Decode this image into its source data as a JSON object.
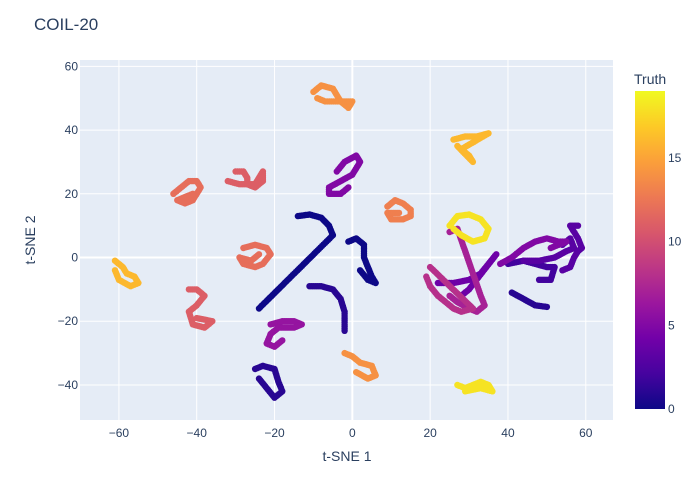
{
  "chart_data": {
    "type": "scatter",
    "title": "COIL-20",
    "xlabel": "t-SNE 1",
    "ylabel": "t-SNE 2",
    "xlim": [
      -70,
      67
    ],
    "ylim": [
      -51,
      62
    ],
    "xticks": [
      -60,
      -40,
      -20,
      0,
      20,
      40,
      60
    ],
    "yticks": [
      -40,
      -20,
      0,
      20,
      40,
      60
    ],
    "colorbar": {
      "title": "Truth",
      "range": [
        0,
        19
      ],
      "ticks": [
        0,
        5,
        10,
        15
      ],
      "colorscale": [
        "#0d0887",
        "#46039f",
        "#7201a8",
        "#9c179e",
        "#bd3786",
        "#d8576b",
        "#ed7953",
        "#fb9f3a",
        "#fdca26",
        "#f0f921"
      ]
    },
    "grid": true,
    "clusters": [
      {
        "truth": 0,
        "points": [
          [
            -14,
            13
          ],
          [
            -11,
            13.5
          ],
          [
            -8,
            12.5
          ],
          [
            -6,
            10
          ],
          [
            -5,
            7
          ],
          [
            -24,
            -16
          ]
        ]
      },
      {
        "truth": 0,
        "points": [
          [
            -1,
            5
          ],
          [
            1,
            6
          ],
          [
            3,
            4
          ],
          [
            3,
            0
          ],
          [
            4,
            -3
          ],
          [
            5,
            -6
          ],
          [
            6,
            -8
          ],
          [
            4,
            -7
          ],
          [
            2,
            -4
          ]
        ]
      },
      {
        "truth": 1,
        "points": [
          [
            -11,
            -9
          ],
          [
            -8,
            -9
          ],
          [
            -5,
            -10
          ],
          [
            -3,
            -13
          ],
          [
            -2,
            -17
          ],
          [
            -2,
            -21
          ],
          [
            -2,
            -23
          ]
        ]
      },
      {
        "truth": 1,
        "points": [
          [
            -25,
            -35
          ],
          [
            -23,
            -34
          ],
          [
            -20,
            -35
          ],
          [
            -19,
            -39
          ],
          [
            -18,
            -42
          ],
          [
            -20,
            -44
          ],
          [
            -22,
            -41
          ],
          [
            -24,
            -38
          ]
        ]
      },
      {
        "truth": 1,
        "points": [
          [
            41,
            -11
          ],
          [
            44,
            -13
          ],
          [
            47,
            -15
          ],
          [
            50,
            -15.5
          ]
        ]
      },
      {
        "truth": 2,
        "points": [
          [
            40,
            -2
          ],
          [
            44,
            -1
          ],
          [
            47,
            -2
          ],
          [
            50,
            -3
          ],
          [
            52,
            -3
          ],
          [
            51,
            -7
          ],
          [
            48,
            -7
          ]
        ]
      },
      {
        "truth": 3,
        "points": [
          [
            44,
            -1
          ],
          [
            48,
            -1
          ],
          [
            52,
            0
          ],
          [
            55,
            2
          ],
          [
            57,
            3
          ],
          [
            56,
            6
          ],
          [
            54,
            4
          ]
        ]
      },
      {
        "truth": 3,
        "points": [
          [
            54,
            -4
          ],
          [
            56,
            -3
          ],
          [
            57,
            0
          ],
          [
            58,
            2
          ],
          [
            59,
            3
          ],
          [
            58,
            6
          ],
          [
            56,
            10
          ],
          [
            58,
            10
          ]
        ]
      },
      {
        "truth": 4,
        "points": [
          [
            22,
            -8
          ],
          [
            26,
            -8
          ],
          [
            30,
            -7
          ],
          [
            33,
            -5
          ],
          [
            35,
            -2
          ],
          [
            37,
            1
          ],
          [
            30,
            -10
          ],
          [
            28,
            -12
          ]
        ]
      },
      {
        "truth": 5,
        "points": [
          [
            38,
            -2
          ],
          [
            41,
            0
          ],
          [
            44,
            3
          ],
          [
            47,
            5
          ],
          [
            50,
            6
          ],
          [
            53,
            5
          ],
          [
            55,
            5
          ],
          [
            51,
            3
          ]
        ]
      },
      {
        "truth": 5,
        "points": [
          [
            -4,
            27
          ],
          [
            -2,
            30
          ],
          [
            1,
            32
          ],
          [
            2,
            30
          ],
          [
            0,
            26
          ],
          [
            -3,
            24
          ],
          [
            -6,
            22
          ],
          [
            -6,
            20
          ],
          [
            -3,
            20
          ],
          [
            -1,
            22
          ]
        ]
      },
      {
        "truth": 6,
        "points": [
          [
            -21,
            -21
          ],
          [
            -18,
            -20
          ],
          [
            -15,
            -20
          ],
          [
            -13,
            -21
          ],
          [
            -15,
            -22
          ],
          [
            -19,
            -22
          ],
          [
            -21,
            -24
          ],
          [
            -22,
            -27
          ],
          [
            -20,
            -28
          ],
          [
            -18,
            -26
          ]
        ]
      },
      {
        "truth": 7,
        "points": [
          [
            25,
            -12
          ],
          [
            27,
            -14
          ],
          [
            30,
            -16
          ],
          [
            32,
            -17
          ],
          [
            34,
            -15
          ],
          [
            33,
            -12
          ],
          [
            27,
            9
          ],
          [
            25,
            8
          ]
        ]
      },
      {
        "truth": 8,
        "points": [
          [
            19,
            -6
          ],
          [
            20,
            -9
          ],
          [
            22,
            -12
          ],
          [
            24,
            -14
          ],
          [
            26,
            -16
          ],
          [
            28,
            -17
          ],
          [
            31,
            -16
          ],
          [
            20,
            -3
          ]
        ]
      },
      {
        "truth": 11,
        "points": [
          [
            -42,
            -10
          ],
          [
            -40,
            -10
          ],
          [
            -38,
            -12
          ],
          [
            -40,
            -15
          ],
          [
            -42,
            -17
          ],
          [
            -41,
            -21
          ],
          [
            -38,
            -22
          ],
          [
            -36,
            -20
          ],
          [
            -40,
            -19
          ]
        ]
      },
      {
        "truth": 11,
        "points": [
          [
            -30,
            27
          ],
          [
            -28,
            27
          ],
          [
            -27,
            25
          ],
          [
            -27,
            23
          ],
          [
            -25,
            22
          ],
          [
            -23,
            24
          ],
          [
            -23,
            27
          ],
          [
            -25,
            23
          ],
          [
            -29,
            23
          ],
          [
            -32,
            24
          ]
        ]
      },
      {
        "truth": 12,
        "points": [
          [
            -28,
            3
          ],
          [
            -25,
            4
          ],
          [
            -22,
            3
          ],
          [
            -21,
            1
          ],
          [
            -23,
            -2
          ],
          [
            -25,
            -3
          ],
          [
            -28,
            -2
          ],
          [
            -29,
            0
          ],
          [
            -26,
            -1
          ],
          [
            -24,
            1
          ]
        ]
      },
      {
        "truth": 12,
        "points": [
          [
            -46,
            20
          ],
          [
            -44,
            22
          ],
          [
            -42,
            24
          ],
          [
            -40,
            24
          ],
          [
            -39,
            22
          ],
          [
            -41,
            18
          ],
          [
            -43,
            17
          ],
          [
            -45,
            18
          ],
          [
            -41,
            20
          ]
        ]
      },
      {
        "truth": 13,
        "points": [
          [
            9,
            16
          ],
          [
            11,
            18
          ],
          [
            13,
            17
          ],
          [
            15,
            15
          ],
          [
            15,
            13
          ],
          [
            13,
            12
          ],
          [
            10,
            12
          ],
          [
            9,
            14
          ],
          [
            12,
            14
          ]
        ]
      },
      {
        "truth": 14,
        "points": [
          [
            -10,
            52
          ],
          [
            -8,
            54
          ],
          [
            -5,
            53
          ],
          [
            -3,
            49
          ],
          [
            -1,
            47
          ],
          [
            0,
            49
          ],
          [
            -7,
            49
          ],
          [
            -9,
            50
          ]
        ]
      },
      {
        "truth": 14,
        "points": [
          [
            -2,
            -30
          ],
          [
            0,
            -31
          ],
          [
            2,
            -33
          ],
          [
            5,
            -34
          ],
          [
            6,
            -37
          ],
          [
            4,
            -38
          ],
          [
            1,
            -36
          ]
        ]
      },
      {
        "truth": 16,
        "points": [
          [
            -61,
            -1
          ],
          [
            -59,
            -3
          ],
          [
            -58,
            -5
          ],
          [
            -56,
            -6
          ],
          [
            -55,
            -8
          ],
          [
            -57,
            -9
          ],
          [
            -60,
            -7
          ],
          [
            -61,
            -4
          ]
        ]
      },
      {
        "truth": 16,
        "points": [
          [
            26,
            37
          ],
          [
            29,
            38
          ],
          [
            32,
            38
          ],
          [
            35,
            39
          ],
          [
            28,
            34
          ],
          [
            30,
            32
          ],
          [
            31,
            30
          ],
          [
            27,
            35
          ]
        ]
      },
      {
        "truth": 18,
        "points": [
          [
            25,
            10
          ],
          [
            27,
            13
          ],
          [
            30,
            13.5
          ],
          [
            33,
            12
          ],
          [
            35,
            9
          ],
          [
            34,
            6
          ],
          [
            31,
            5
          ],
          [
            28,
            7
          ],
          [
            26,
            9
          ]
        ]
      },
      {
        "truth": 18,
        "points": [
          [
            27,
            -40
          ],
          [
            29,
            -41
          ],
          [
            31,
            -40
          ],
          [
            33,
            -39
          ],
          [
            35,
            -40
          ],
          [
            36,
            -42
          ],
          [
            33,
            -41
          ],
          [
            29,
            -42
          ]
        ]
      }
    ]
  }
}
